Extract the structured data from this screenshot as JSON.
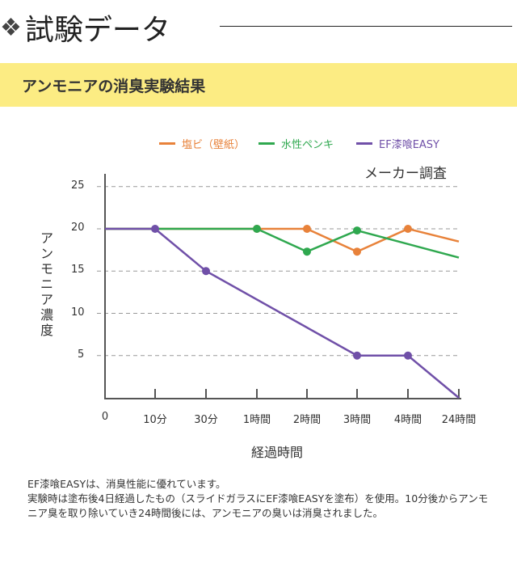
{
  "header": {
    "title": "試験データ",
    "bullet_icon": "diamond-cluster-icon"
  },
  "section": {
    "title": "アンモニアの消臭実験結果"
  },
  "chart_data": {
    "type": "line",
    "annotation": "メーカー調査",
    "xlabel": "経過時間",
    "ylabel": "アンモニア濃度",
    "categories": [
      "0",
      "10分",
      "30分",
      "1時間",
      "2時間",
      "3時間",
      "4時間",
      "24時間"
    ],
    "yticks": [
      5,
      10,
      15,
      20,
      25
    ],
    "ylim": [
      0,
      25
    ],
    "grid": true,
    "legend_position": "top-right",
    "series": [
      {
        "name": "塩ビ（壁紙）",
        "color": "#e8823a",
        "values": [
          20,
          20,
          20,
          20,
          20,
          17.3,
          20,
          18.5
        ],
        "markers": [
          3,
          4,
          5,
          6
        ]
      },
      {
        "name": "水性ペンキ",
        "color": "#2fa84f",
        "values": [
          20,
          20,
          20,
          20,
          17.3,
          19.8,
          null,
          16.6
        ],
        "markers": [
          3,
          4,
          5
        ]
      },
      {
        "name": "EF漆喰EASY",
        "color": "#7050a8",
        "values": [
          20,
          20,
          15,
          null,
          null,
          5,
          5,
          0
        ],
        "markers": [
          1,
          2,
          5,
          6
        ]
      }
    ]
  },
  "note": {
    "lines": [
      "EF漆喰EASYは、消臭性能に優れています。",
      "実験時は塗布後4日経過したもの（スライドガラスにEF漆喰EASYを塗布）を使用。10分後からアンモニア臭を取り除いていき24時間後には、アンモニアの臭いは消臭されました。"
    ]
  }
}
